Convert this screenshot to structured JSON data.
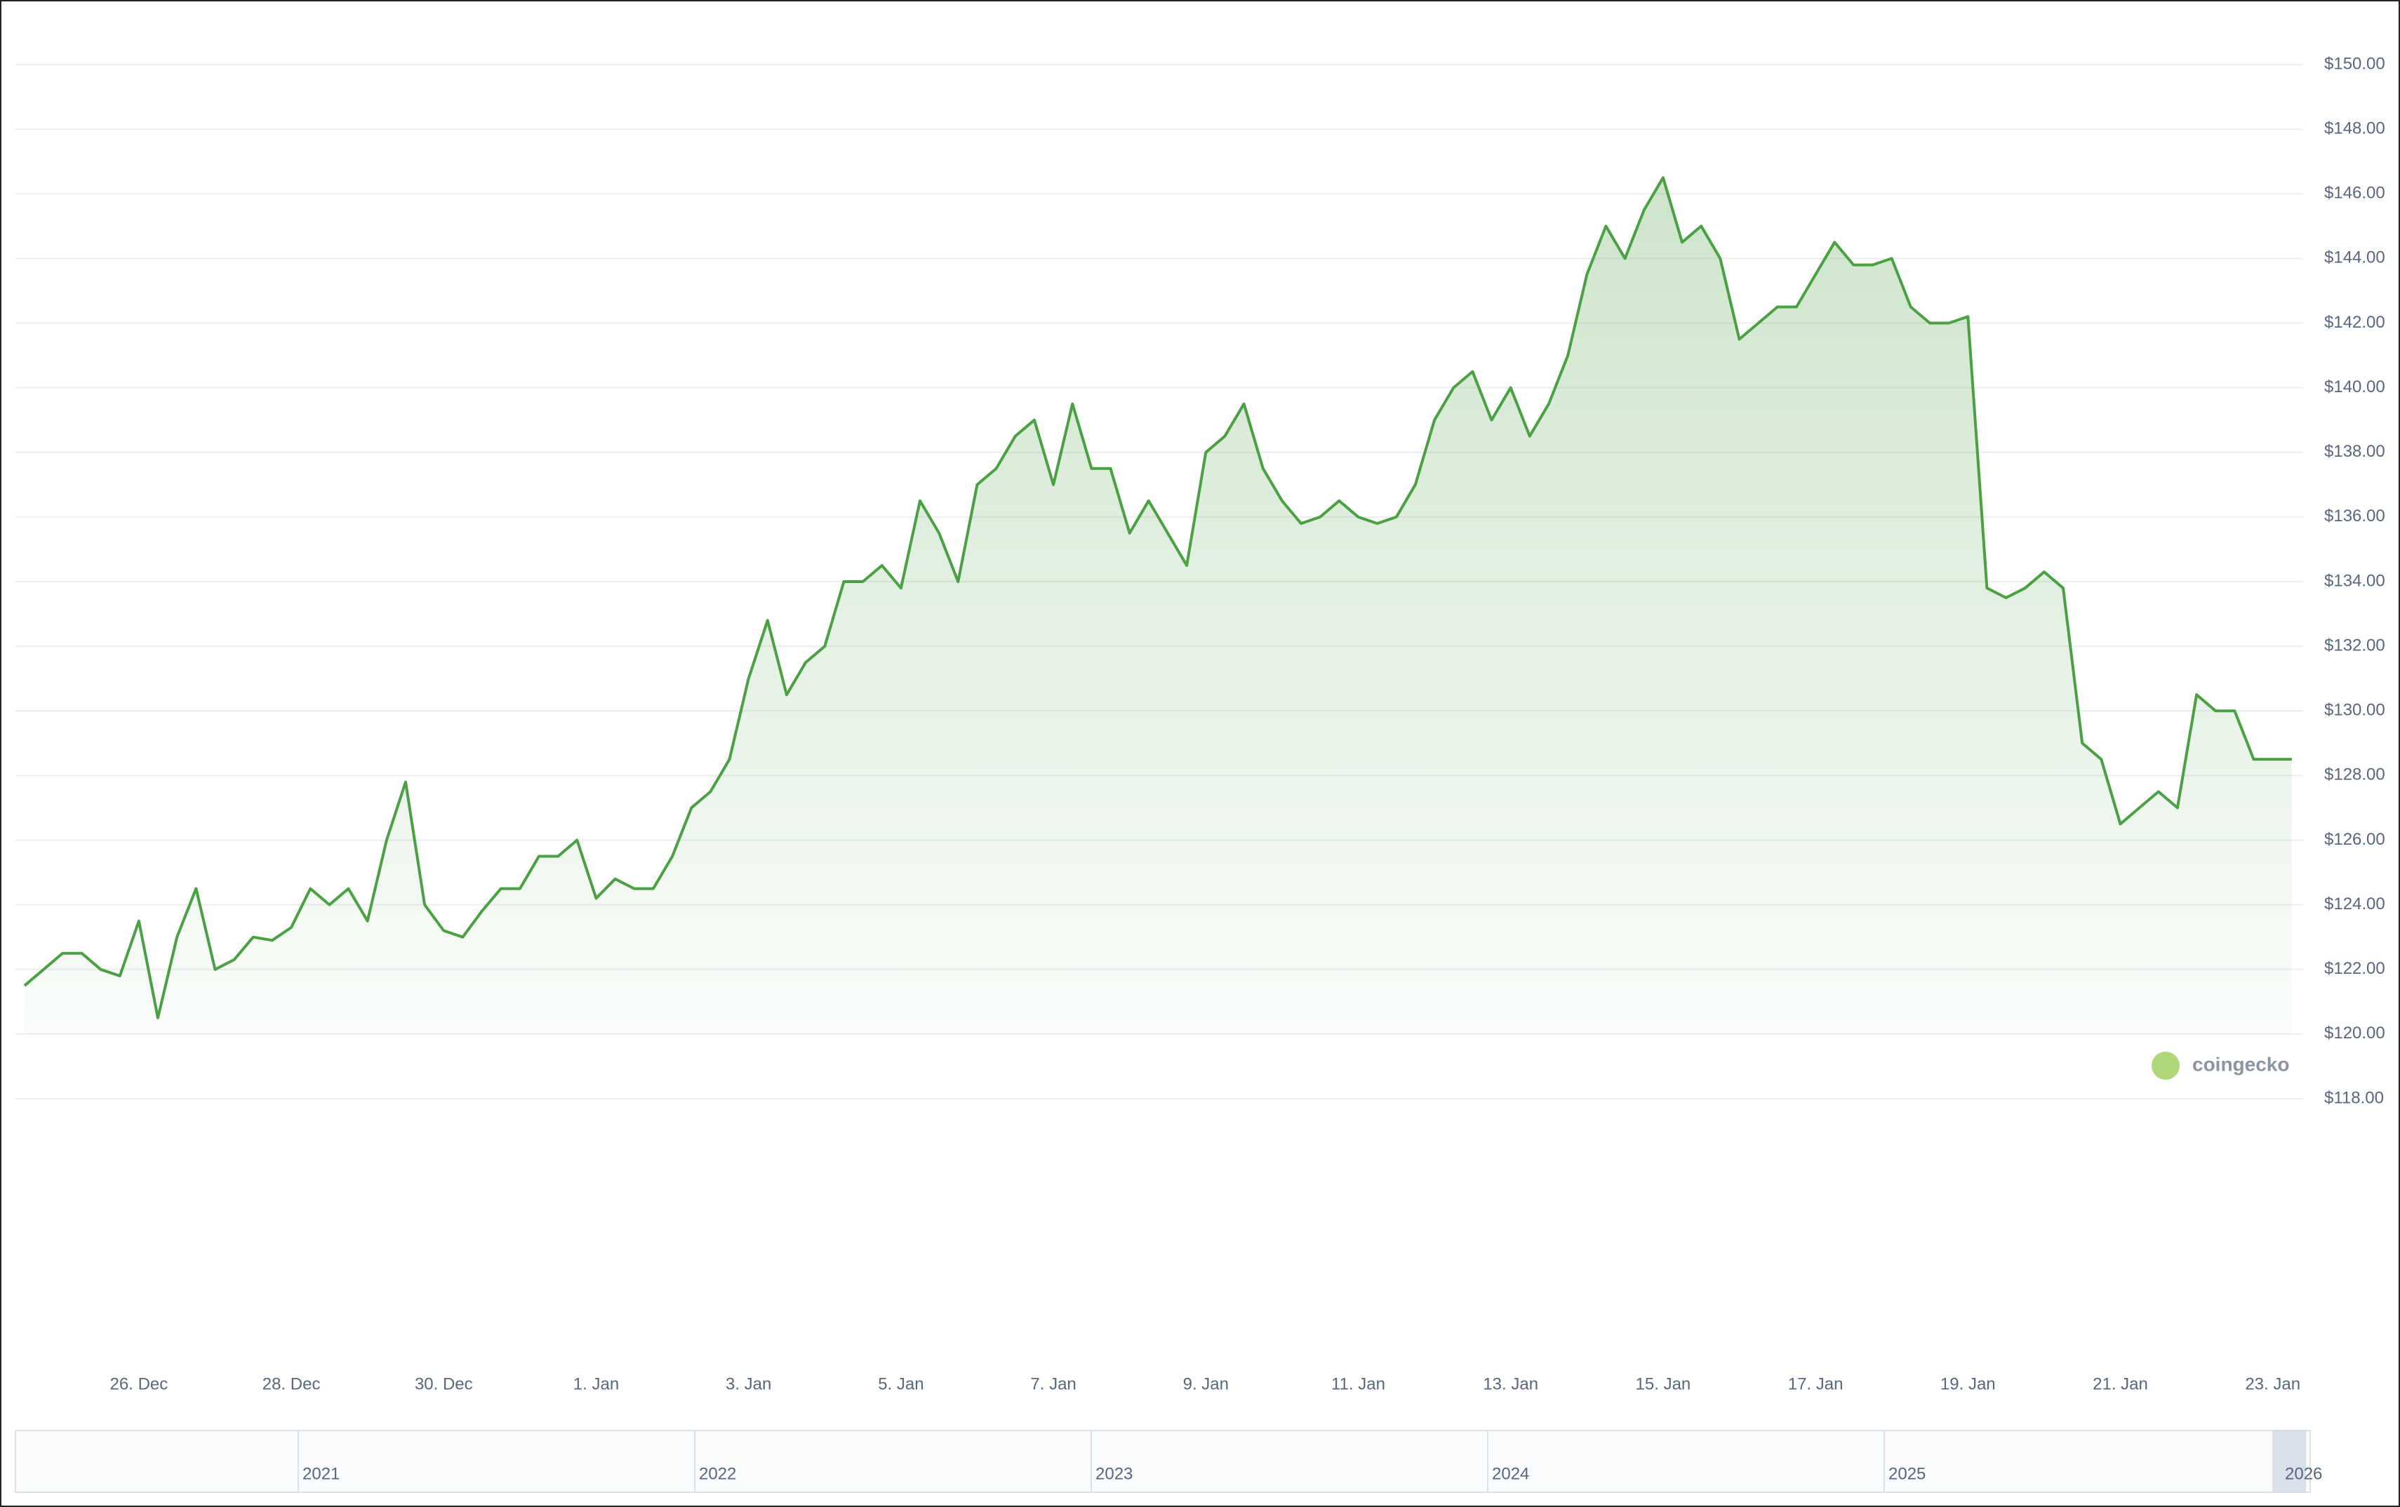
{
  "chart_data": {
    "type": "line",
    "categories": [
      null,
      null,
      null,
      null,
      null,
      null,
      "26. Dec",
      null,
      null,
      null,
      null,
      null,
      null,
      null,
      "28. Dec",
      null,
      null,
      null,
      null,
      null,
      null,
      null,
      "30. Dec",
      null,
      null,
      null,
      null,
      null,
      null,
      null,
      "1. Jan",
      null,
      null,
      null,
      null,
      null,
      null,
      null,
      "3. Jan",
      null,
      null,
      null,
      null,
      null,
      null,
      null,
      "5. Jan",
      null,
      null,
      null,
      null,
      null,
      null,
      null,
      "7. Jan",
      null,
      null,
      null,
      null,
      null,
      null,
      null,
      "9. Jan",
      null,
      null,
      null,
      null,
      null,
      null,
      null,
      "11. Jan",
      null,
      null,
      null,
      null,
      null,
      null,
      null,
      "13. Jan",
      null,
      null,
      null,
      null,
      null,
      null,
      null,
      "15. Jan",
      null,
      null,
      null,
      null,
      null,
      null,
      null,
      "17. Jan",
      null,
      null,
      null,
      null,
      null,
      null,
      null,
      "19. Jan",
      null,
      null,
      null,
      null,
      null,
      null,
      null,
      "21. Jan",
      null,
      null,
      null,
      null,
      null,
      null,
      null,
      "23. Jan",
      null
    ],
    "series": [
      {
        "color": "#4aa043",
        "values": [
          121.5,
          122.0,
          122.5,
          122.5,
          122.0,
          121.8,
          123.5,
          120.5,
          123.0,
          124.5,
          122.0,
          122.3,
          123.0,
          122.9,
          123.3,
          124.5,
          124.0,
          124.5,
          123.5,
          126.0,
          127.8,
          124.0,
          123.2,
          123.0,
          123.8,
          124.5,
          124.5,
          125.5,
          125.5,
          126.0,
          124.2,
          124.8,
          124.5,
          124.5,
          125.5,
          127.0,
          127.5,
          128.5,
          131.0,
          132.8,
          130.5,
          131.5,
          132.0,
          134.0,
          134.0,
          134.5,
          133.8,
          136.5,
          135.5,
          134.0,
          137.0,
          137.5,
          138.5,
          139.0,
          137.0,
          139.5,
          137.5,
          137.5,
          135.5,
          136.5,
          135.5,
          134.5,
          138.0,
          138.5,
          139.5,
          137.5,
          136.5,
          135.8,
          136.0,
          136.5,
          136.0,
          135.8,
          136.0,
          137.0,
          139.0,
          140.0,
          140.5,
          139.0,
          140.0,
          138.5,
          139.5,
          141.0,
          143.5,
          145.0,
          144.0,
          145.5,
          146.5,
          144.5,
          145.0,
          144.0,
          141.5,
          142.0,
          142.5,
          142.5,
          143.5,
          144.5,
          143.8,
          143.8,
          144.0,
          142.5,
          142.0,
          142.0,
          142.2,
          133.8,
          133.5,
          133.8,
          134.3,
          133.8,
          129.0,
          128.5,
          126.5,
          127.0,
          127.5,
          127.0,
          130.5,
          130.0,
          130.0,
          128.5,
          128.5,
          128.5
        ]
      }
    ],
    "ylim": [
      118,
      150
    ],
    "yticks": [
      {
        "value": 118,
        "label": "$118.00"
      },
      {
        "value": 120,
        "label": "$120.00"
      },
      {
        "value": 122,
        "label": "$122.00"
      },
      {
        "value": 124,
        "label": "$124.00"
      },
      {
        "value": 126,
        "label": "$126.00"
      },
      {
        "value": 128,
        "label": "$128.00"
      },
      {
        "value": 130,
        "label": "$130.00"
      },
      {
        "value": 132,
        "label": "$132.00"
      },
      {
        "value": 134,
        "label": "$134.00"
      },
      {
        "value": 136,
        "label": "$136.00"
      },
      {
        "value": 138,
        "label": "$138.00"
      },
      {
        "value": 140,
        "label": "$140.00"
      },
      {
        "value": 142,
        "label": "$142.00"
      },
      {
        "value": 144,
        "label": "$144.00"
      },
      {
        "value": 146,
        "label": "$146.00"
      },
      {
        "value": 148,
        "label": "$148.00"
      },
      {
        "value": 150,
        "label": "$150.00"
      }
    ],
    "grid": true,
    "watermark": "coingecko",
    "navigator_labels": [
      "2021",
      "2022",
      "2023",
      "2024",
      "2025",
      "2026"
    ]
  }
}
